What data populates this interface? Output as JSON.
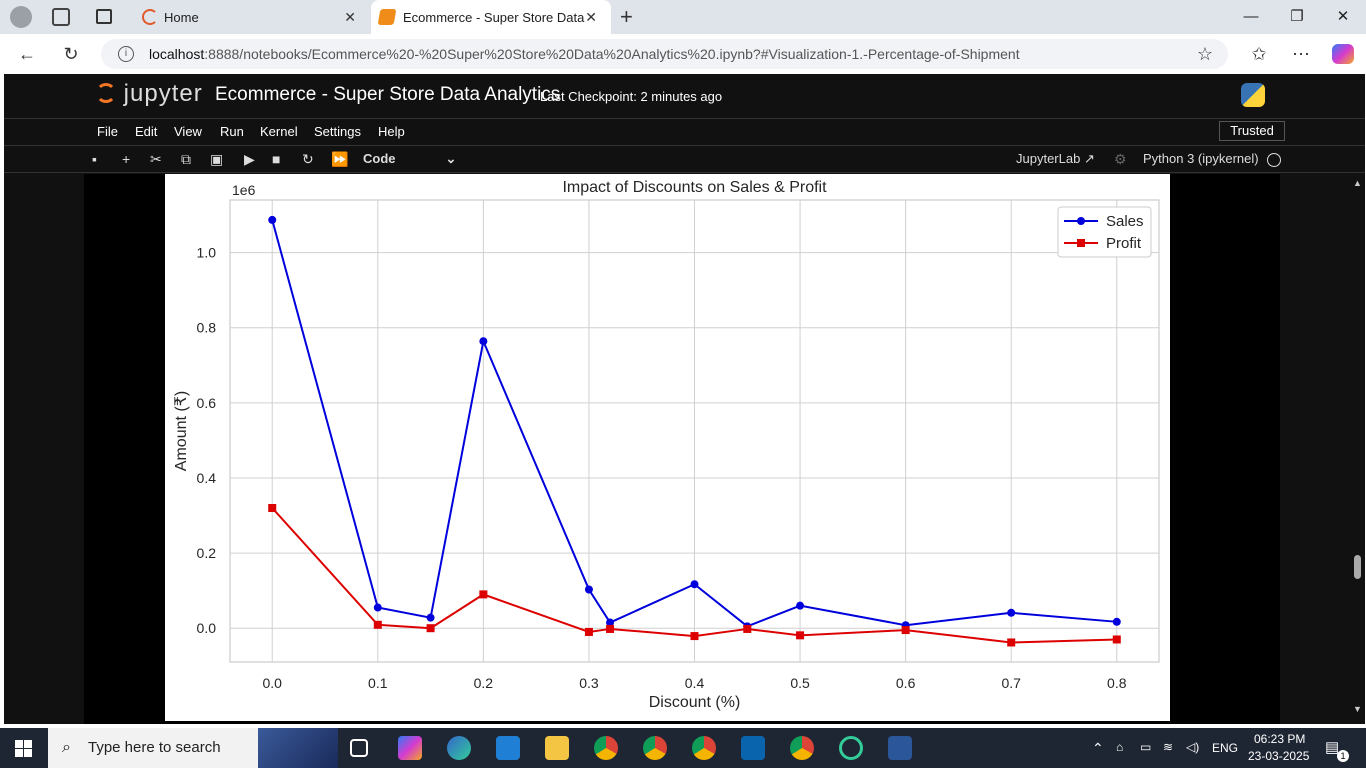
{
  "browser": {
    "tabs": [
      {
        "label": "Home"
      },
      {
        "label": "Ecommerce - Super Store Data Ar"
      }
    ],
    "url_host": "localhost",
    "url_rest": ":8888/notebooks/Ecommerce%20-%20Super%20Store%20Data%20Analytics%20.ipynb?#Visualization-1.-Percentage-of-Shipment"
  },
  "jupyter": {
    "logo": "jupyter",
    "title": "Ecommerce - Super Store Data Analytics",
    "checkpoint": "Last Checkpoint: 2 minutes ago",
    "menu": [
      "File",
      "Edit",
      "View",
      "Run",
      "Kernel",
      "Settings",
      "Help"
    ],
    "trusted": "Trusted",
    "cell_type": "Code",
    "jupyterlab": "JupyterLab",
    "kernel": "Python 3 (ipykernel)"
  },
  "chart_data": {
    "type": "line",
    "title": "Impact of Discounts on Sales & Profit",
    "xlabel": "Discount (%)",
    "ylabel": "Amount (₹)",
    "y_offset_label": "1e6",
    "x_ticks": [
      "0.0",
      "0.1",
      "0.2",
      "0.3",
      "0.4",
      "0.5",
      "0.6",
      "0.7",
      "0.8"
    ],
    "y_ticks": [
      "0.0",
      "0.2",
      "0.4",
      "0.6",
      "0.8",
      "1.0"
    ],
    "xlim": [
      -0.04,
      0.84
    ],
    "ylim": [
      -0.09,
      1.14
    ],
    "grid": true,
    "legend": "top-right",
    "x": [
      0.0,
      0.1,
      0.15,
      0.2,
      0.3,
      0.32,
      0.4,
      0.45,
      0.5,
      0.6,
      0.7,
      0.8
    ],
    "series": [
      {
        "name": "Sales",
        "color": "#0000dd",
        "marker": "circle",
        "values": [
          1.087,
          0.055,
          0.028,
          0.764,
          0.103,
          0.015,
          0.117,
          0.005,
          0.06,
          0.008,
          0.041,
          0.017
        ]
      },
      {
        "name": "Profit",
        "color": "#dd0000",
        "marker": "square",
        "values": [
          0.32,
          0.009,
          0.0,
          0.09,
          -0.01,
          -0.002,
          -0.021,
          -0.002,
          -0.019,
          -0.005,
          -0.038,
          -0.03
        ]
      }
    ]
  },
  "taskbar": {
    "search_placeholder": "Type here to search",
    "language": "ENG",
    "time": "06:23 PM",
    "date": "23-03-2025",
    "notification_count": "1"
  }
}
